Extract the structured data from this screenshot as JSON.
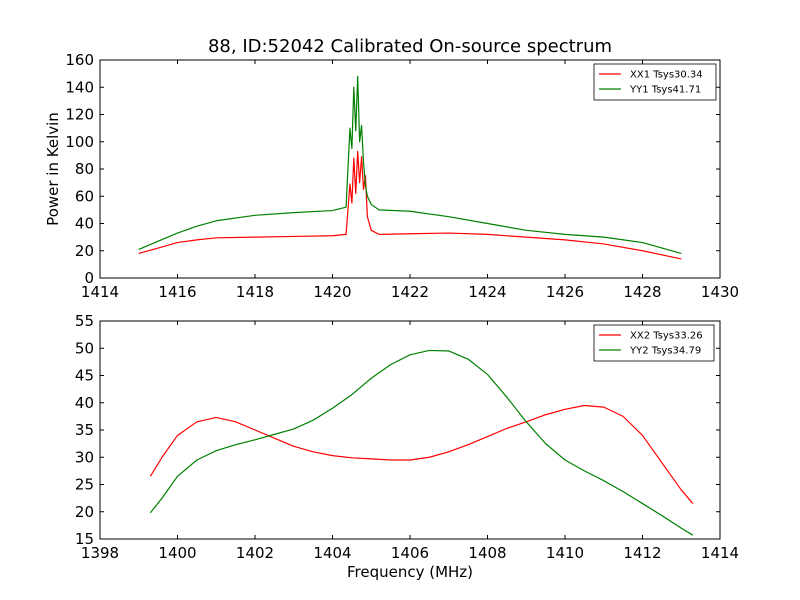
{
  "figure": {
    "title": "88, ID:52042 Calibrated On-source spectrum",
    "colors": {
      "red": "#ff0000",
      "green": "#008000"
    }
  },
  "chart_data": [
    {
      "type": "line",
      "title": "88, ID:52042 Calibrated On-source spectrum",
      "xlabel": "",
      "ylabel": "Power in Kelvin",
      "xlim": [
        1414,
        1430
      ],
      "ylim": [
        0,
        160
      ],
      "xticks": [
        1414,
        1416,
        1418,
        1420,
        1422,
        1424,
        1426,
        1428,
        1430
      ],
      "yticks": [
        0,
        20,
        40,
        60,
        80,
        100,
        120,
        140,
        160
      ],
      "grid": false,
      "legend_position": "top-right",
      "series": [
        {
          "name": "XX1 Tsys30.34",
          "color": "#ff0000",
          "x": [
            1415.0,
            1415.5,
            1416.0,
            1416.5,
            1417.0,
            1418.0,
            1419.0,
            1420.0,
            1420.35,
            1420.45,
            1420.5,
            1420.55,
            1420.6,
            1420.65,
            1420.7,
            1420.75,
            1420.8,
            1420.85,
            1420.9,
            1421.0,
            1421.2,
            1422.0,
            1423.0,
            1424.0,
            1425.0,
            1426.0,
            1427.0,
            1428.0,
            1429.0
          ],
          "y": [
            18,
            22,
            26,
            28,
            29.5,
            30,
            30.5,
            31,
            32,
            69,
            55,
            88,
            62,
            93,
            70,
            89,
            65,
            75,
            45,
            35,
            32,
            32.5,
            33,
            32,
            30,
            28,
            25,
            20,
            14
          ]
        },
        {
          "name": "YY1 Tsys41.71",
          "color": "#008000",
          "x": [
            1415.0,
            1415.5,
            1416.0,
            1416.5,
            1417.0,
            1418.0,
            1419.0,
            1420.0,
            1420.35,
            1420.45,
            1420.5,
            1420.55,
            1420.6,
            1420.65,
            1420.7,
            1420.75,
            1420.8,
            1420.85,
            1420.9,
            1421.0,
            1421.2,
            1422.0,
            1423.0,
            1424.0,
            1425.0,
            1426.0,
            1427.0,
            1428.0,
            1429.0
          ],
          "y": [
            21,
            27,
            33,
            38,
            42,
            46,
            48,
            49.5,
            52,
            110,
            95,
            140,
            108,
            148,
            100,
            112,
            85,
            68,
            60,
            54,
            50,
            49,
            45,
            40,
            35,
            32,
            30,
            26,
            18
          ]
        }
      ]
    },
    {
      "type": "line",
      "title": "",
      "xlabel": "Frequency (MHz)",
      "ylabel": "",
      "xlim": [
        1398,
        1414
      ],
      "ylim": [
        15,
        55
      ],
      "xticks": [
        1398,
        1400,
        1402,
        1404,
        1406,
        1408,
        1410,
        1412,
        1414
      ],
      "yticks": [
        15,
        20,
        25,
        30,
        35,
        40,
        45,
        50,
        55
      ],
      "grid": false,
      "legend_position": "top-right",
      "series": [
        {
          "name": "XX2 Tsys33.26",
          "color": "#ff0000",
          "x": [
            1399.3,
            1399.6,
            1400.0,
            1400.5,
            1401.0,
            1401.5,
            1402.0,
            1402.5,
            1403.0,
            1403.5,
            1404.0,
            1404.5,
            1405.0,
            1405.5,
            1406.0,
            1406.5,
            1407.0,
            1407.5,
            1408.0,
            1408.5,
            1409.0,
            1409.5,
            1410.0,
            1410.5,
            1411.0,
            1411.5,
            1412.0,
            1412.5,
            1413.0,
            1413.3
          ],
          "y": [
            26.5,
            30,
            34,
            36.5,
            37.3,
            36.5,
            35,
            33.5,
            32,
            31,
            30.3,
            29.9,
            29.7,
            29.5,
            29.5,
            30,
            31,
            32.3,
            33.8,
            35.3,
            36.5,
            37.8,
            38.8,
            39.5,
            39.2,
            37.5,
            34,
            29,
            24,
            21.5
          ]
        },
        {
          "name": "YY2 Tsys34.79",
          "color": "#008000",
          "x": [
            1399.3,
            1399.6,
            1400.0,
            1400.5,
            1401.0,
            1401.5,
            1402.0,
            1402.5,
            1403.0,
            1403.5,
            1404.0,
            1404.5,
            1405.0,
            1405.5,
            1406.0,
            1406.5,
            1407.0,
            1407.5,
            1408.0,
            1408.5,
            1409.0,
            1409.5,
            1410.0,
            1410.5,
            1411.0,
            1411.5,
            1412.0,
            1412.5,
            1413.0,
            1413.3
          ],
          "y": [
            19.8,
            22.5,
            26.5,
            29.5,
            31.2,
            32.3,
            33.2,
            34.2,
            35.2,
            36.8,
            39,
            41.5,
            44.5,
            47,
            48.8,
            49.6,
            49.5,
            48,
            45.2,
            41,
            36.5,
            32.5,
            29.5,
            27.5,
            25.7,
            23.7,
            21.5,
            19.3,
            17,
            15.7
          ]
        }
      ]
    }
  ]
}
